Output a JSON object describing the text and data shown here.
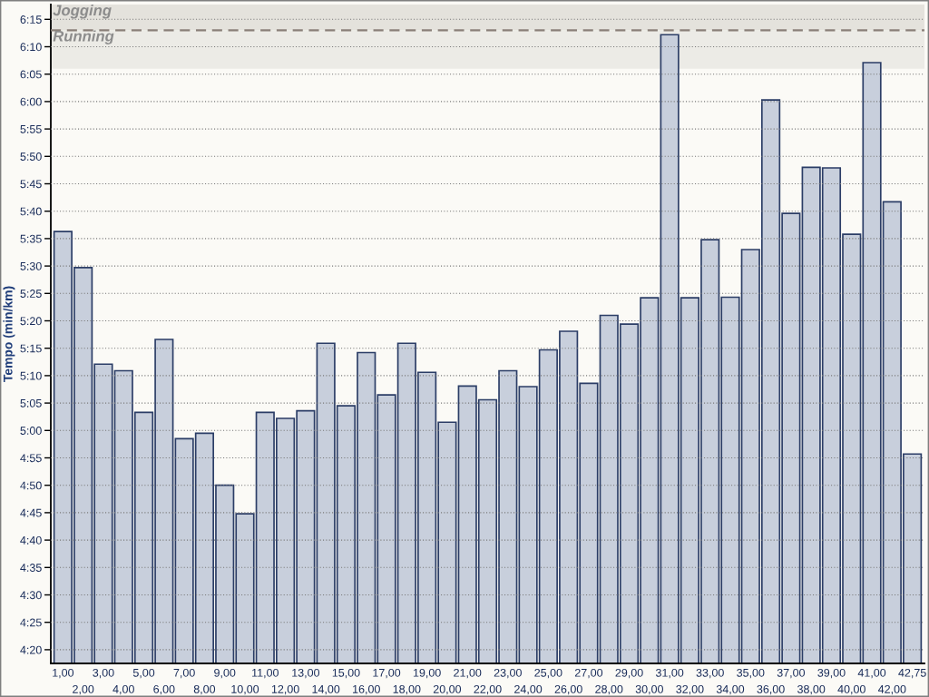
{
  "chart_data": {
    "type": "bar",
    "ylabel": "Tempo (min/km)",
    "categories": [
      "1,00",
      "2,00",
      "3,00",
      "4,00",
      "5,00",
      "6,00",
      "7,00",
      "8,00",
      "9,00",
      "10,00",
      "11,00",
      "12,00",
      "13,00",
      "14,00",
      "15,00",
      "16,00",
      "17,00",
      "18,00",
      "19,00",
      "20,00",
      "21,00",
      "22,00",
      "23,00",
      "24,00",
      "25,00",
      "26,00",
      "27,00",
      "28,00",
      "29,00",
      "30,00",
      "31,00",
      "32,00",
      "33,00",
      "34,00",
      "35,00",
      "36,00",
      "37,00",
      "38,00",
      "39,00",
      "40,00",
      "41,00",
      "42,00",
      "42,75"
    ],
    "values": [
      336.3,
      329.7,
      312.1,
      310.9,
      303.3,
      316.6,
      298.5,
      299.5,
      290.0,
      284.8,
      303.3,
      302.2,
      303.6,
      315.9,
      304.5,
      314.2,
      306.5,
      315.9,
      310.6,
      301.5,
      308.1,
      305.6,
      310.9,
      308.0,
      314.7,
      318.1,
      308.6,
      321.0,
      319.4,
      324.2,
      372.2,
      324.2,
      334.8,
      324.3,
      333.0,
      360.3,
      339.6,
      348.0,
      347.9,
      335.8,
      367.1,
      341.7,
      295.7
    ],
    "color": "#c8cfdc",
    "ylim": [
      257.5,
      377.7
    ],
    "yticks": [
      {
        "value": 260,
        "label": "4:20"
      },
      {
        "value": 265,
        "label": "4:25"
      },
      {
        "value": 270,
        "label": "4:30"
      },
      {
        "value": 275,
        "label": "4:35"
      },
      {
        "value": 280,
        "label": "4:40"
      },
      {
        "value": 285,
        "label": "4:45"
      },
      {
        "value": 290,
        "label": "4:50"
      },
      {
        "value": 295,
        "label": "4:55"
      },
      {
        "value": 300,
        "label": "5:00"
      },
      {
        "value": 305,
        "label": "5:05"
      },
      {
        "value": 310,
        "label": "5:10"
      },
      {
        "value": 315,
        "label": "5:15"
      },
      {
        "value": 320,
        "label": "5:20"
      },
      {
        "value": 325,
        "label": "5:25"
      },
      {
        "value": 330,
        "label": "5:30"
      },
      {
        "value": 335,
        "label": "5:35"
      },
      {
        "value": 340,
        "label": "5:40"
      },
      {
        "value": 345,
        "label": "5:45"
      },
      {
        "value": 350,
        "label": "5:50"
      },
      {
        "value": 355,
        "label": "5:55"
      },
      {
        "value": 360,
        "label": "6:00"
      },
      {
        "value": 365,
        "label": "6:05"
      },
      {
        "value": 370,
        "label": "6:10"
      },
      {
        "value": 375,
        "label": "6:15"
      }
    ],
    "grid": "y",
    "bands": [
      {
        "axis": "y",
        "from": 373,
        "to": 377.7,
        "label": "Jogging",
        "color": "#e4e2dc"
      },
      {
        "axis": "y",
        "from": 366,
        "to": 373,
        "label": "Running",
        "color": "#ecebe6"
      }
    ],
    "ref_lines": [
      {
        "axis": "y",
        "value": 373,
        "color": "#8a8079",
        "line_style": "dashed"
      }
    ]
  }
}
